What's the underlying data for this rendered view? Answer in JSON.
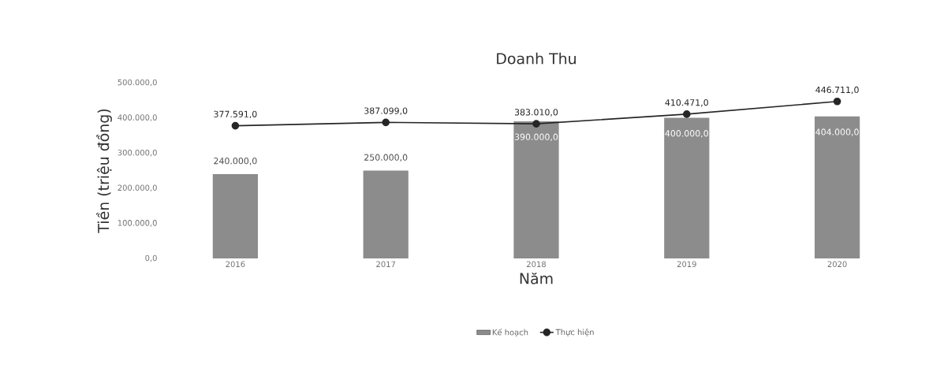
{
  "chart_data": {
    "type": "bar",
    "title": "Doanh Thu",
    "xlabel": "Năm",
    "ylabel": "Tiền (triệu đồng)",
    "categories": [
      "2016",
      "2017",
      "2018",
      "2019",
      "2020"
    ],
    "series": [
      {
        "name": "Kế hoạch",
        "color": "#8c8c8c",
        "values": [
          240000,
          250000,
          390000,
          400000,
          404000
        ],
        "value_labels": [
          "240.000,0",
          "250.000,0",
          "390.000,0",
          "400.000,0",
          "404.000,0"
        ]
      },
      {
        "name": "Thực hiện",
        "type": "line",
        "color": "#262626",
        "marker": "circle",
        "values": [
          377591,
          387099,
          383010,
          410471,
          446711
        ],
        "value_labels": [
          "377.591,0",
          "387.099,0",
          "383.010,0",
          "410.471,0",
          "446.711,0"
        ]
      }
    ],
    "ylim": [
      0,
      500000
    ],
    "yticks": [
      {
        "value": 0,
        "label": "0,0"
      },
      {
        "value": 100000,
        "label": "100.000,0"
      },
      {
        "value": 200000,
        "label": "200.000,0"
      },
      {
        "value": 300000,
        "label": "300.000,0"
      },
      {
        "value": 400000,
        "label": "400.000,0"
      },
      {
        "value": 500000,
        "label": "500.000,0"
      }
    ],
    "legend": "bottom"
  }
}
